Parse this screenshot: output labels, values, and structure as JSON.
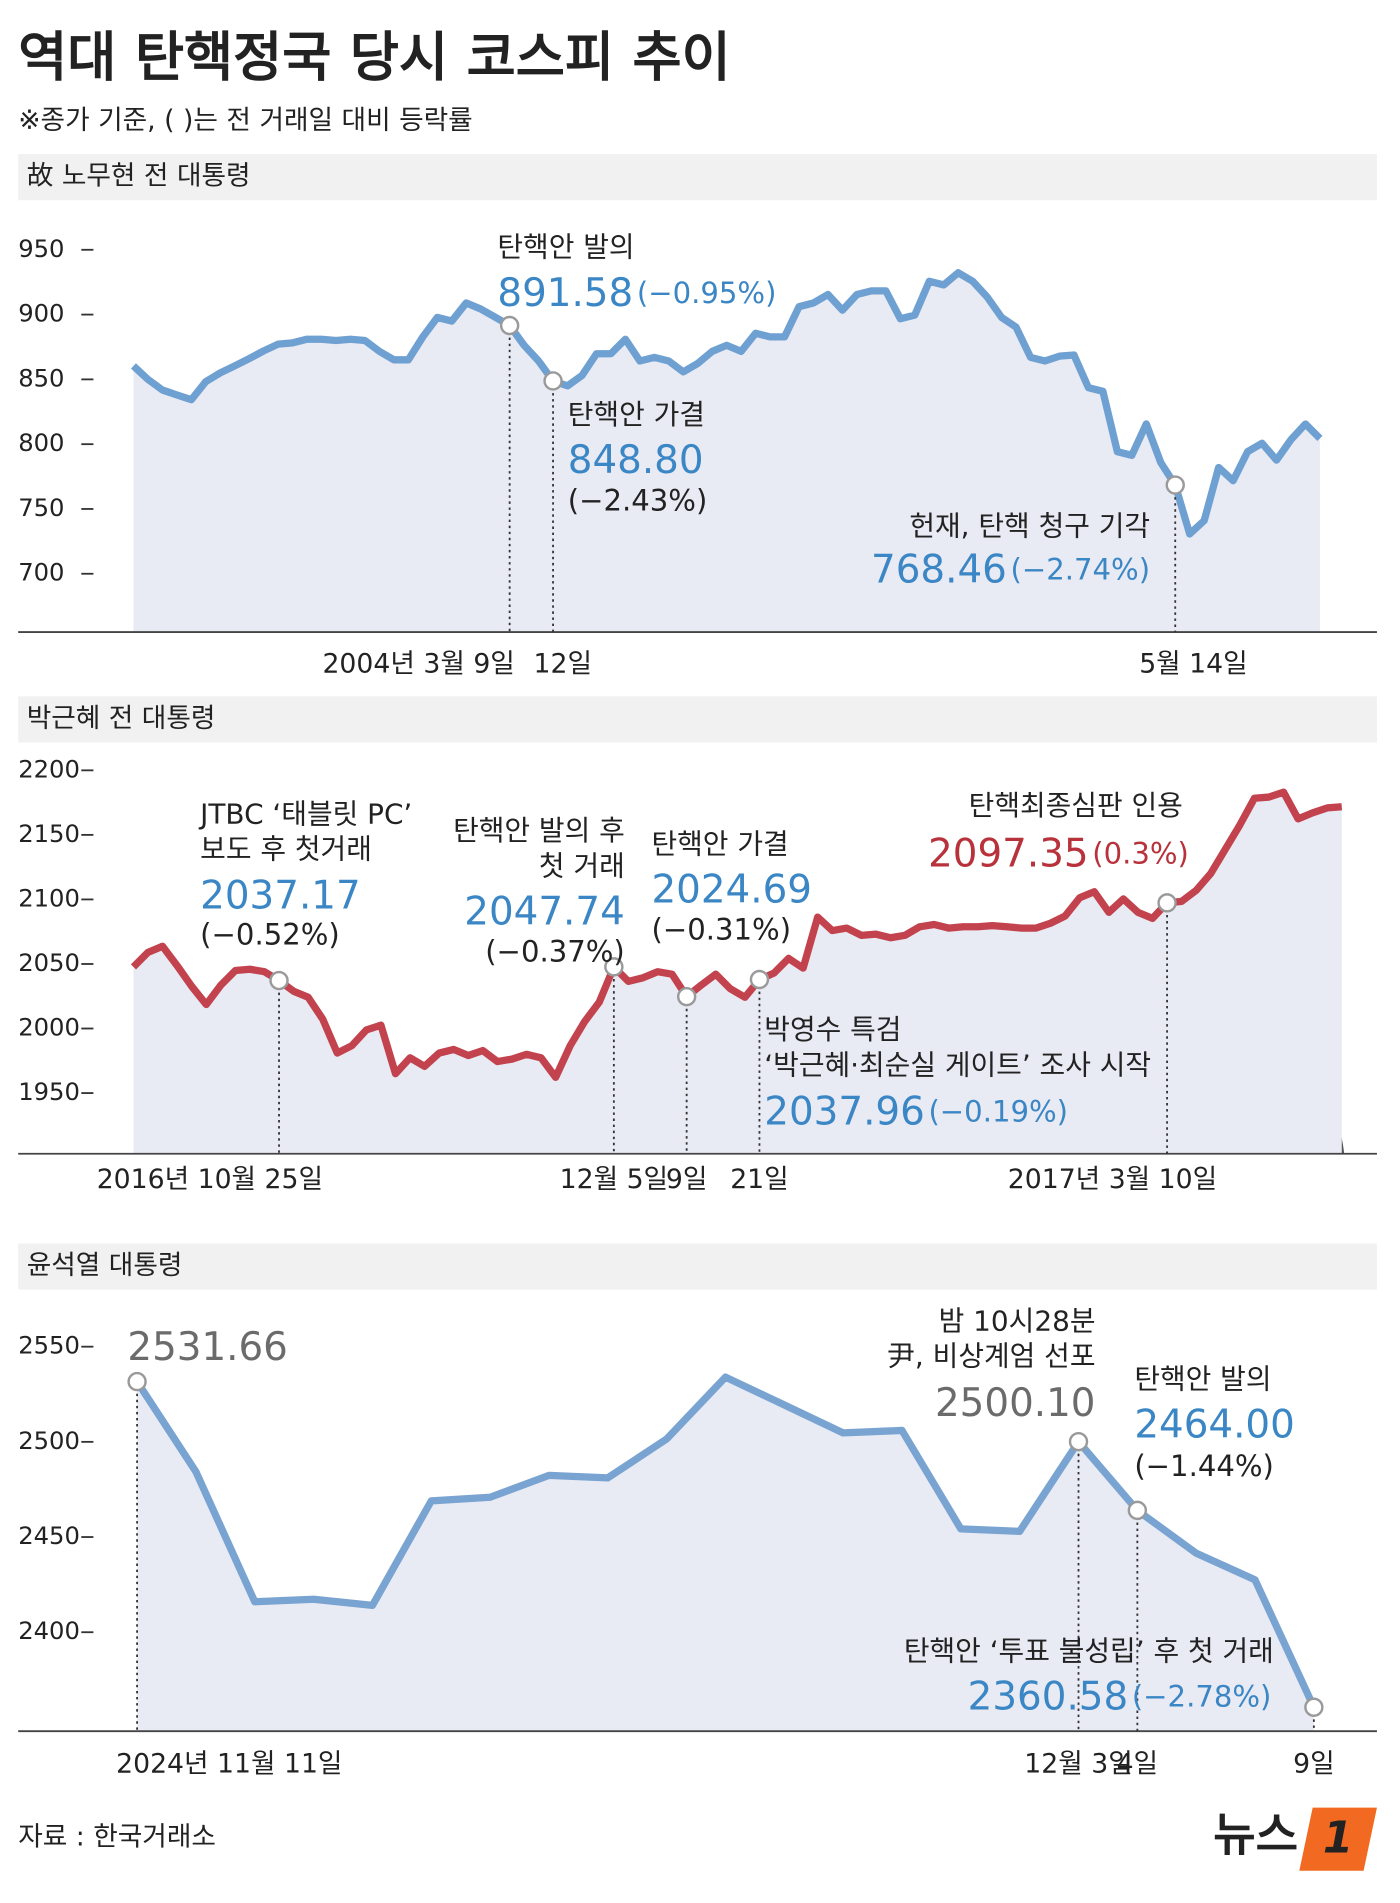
{
  "title": "역대 탄핵정국 당시 코스피 추이",
  "subtitle": "※종가 기준, ( )는 전 거래일 대비 등락률",
  "source": "자료 : 한국거래소",
  "logo": {
    "text": "뉴스",
    "mark": "1"
  },
  "chart_data": [
    {
      "type": "line",
      "title": "故 노무현 전 대통령",
      "categories": [
        null,
        null,
        null,
        null,
        null,
        null,
        null,
        null,
        null,
        null,
        null,
        null,
        null,
        null,
        null,
        null,
        null,
        null,
        null,
        null,
        null,
        null,
        null,
        null,
        null,
        null,
        "2004년 3월 9일",
        null,
        null,
        "12일",
        null,
        null,
        null,
        null,
        null,
        null,
        null,
        null,
        null,
        null,
        null,
        null,
        null,
        null,
        null,
        null,
        null,
        null,
        null,
        null,
        null,
        null,
        null,
        null,
        null,
        null,
        null,
        null,
        null,
        null,
        null,
        null,
        null,
        null,
        null,
        null,
        null,
        null,
        null,
        null,
        null,
        null,
        "5월 14일",
        null,
        null,
        null,
        null,
        null,
        null,
        null,
        null,
        null,
        null
      ],
      "values": [
        860.4,
        850,
        841.8,
        838,
        834.3,
        848.3,
        855,
        860.4,
        866,
        872,
        877.2,
        878.2,
        881,
        881,
        880,
        881,
        880,
        871.6,
        865.1,
        865.1,
        882.8,
        897.8,
        895,
        909,
        904.3,
        898,
        891.58,
        876.3,
        864.2,
        848.8,
        845,
        853,
        869.8,
        869.8,
        881,
        864.2,
        867,
        864.2,
        855.8,
        862.3,
        871.6,
        876.3,
        871.6,
        885.6,
        882.8,
        882.8,
        906.1,
        909,
        915.5,
        903.4,
        915.5,
        918.3,
        918.3,
        896.8,
        899.6,
        925.7,
        922.9,
        932.3,
        925.7,
        913.6,
        897.8,
        890.3,
        867,
        864.2,
        867.9,
        868.8,
        843.6,
        840.8,
        794.2,
        791.4,
        815.6,
        785.8,
        768.46,
        730.7,
        741,
        782,
        771.8,
        794.2,
        800.7,
        787.7,
        803.5,
        815.6,
        804.4
      ],
      "value_labels": [
        null,
        null,
        null,
        null,
        null,
        null,
        null,
        null,
        null,
        null,
        null,
        null,
        null,
        null,
        null,
        null,
        null,
        null,
        null,
        null,
        null,
        null,
        null,
        null,
        null,
        null,
        "891.58",
        null,
        null,
        "848.80",
        null,
        null,
        null,
        null,
        null,
        null,
        null,
        null,
        null,
        null,
        null,
        null,
        null,
        null,
        null,
        null,
        null,
        null,
        null,
        null,
        null,
        null,
        null,
        null,
        null,
        null,
        null,
        null,
        null,
        null,
        null,
        null,
        null,
        null,
        null,
        null,
        null,
        null,
        null,
        null,
        null,
        null,
        "768.46",
        null,
        null,
        null,
        null,
        null,
        null,
        null,
        null,
        null,
        null
      ],
      "events": [
        null,
        null,
        null,
        null,
        null,
        null,
        null,
        null,
        null,
        null,
        null,
        null,
        null,
        null,
        null,
        null,
        null,
        null,
        null,
        null,
        null,
        null,
        null,
        null,
        null,
        null,
        [
          "탄핵안 발의"
        ],
        null,
        null,
        [
          "탄핵안 가결"
        ],
        null,
        null,
        null,
        null,
        null,
        null,
        null,
        null,
        null,
        null,
        null,
        null,
        null,
        null,
        null,
        null,
        null,
        null,
        null,
        null,
        null,
        null,
        null,
        null,
        null,
        null,
        null,
        null,
        null,
        null,
        null,
        null,
        null,
        null,
        null,
        null,
        null,
        null,
        null,
        null,
        null,
        null,
        [
          "헌재, 탄핵 청구 기각"
        ],
        null,
        null,
        null,
        null,
        null,
        null,
        null,
        null,
        null,
        null
      ],
      "changes": [
        null,
        null,
        null,
        null,
        null,
        null,
        null,
        null,
        null,
        null,
        null,
        null,
        null,
        null,
        null,
        null,
        null,
        null,
        null,
        null,
        null,
        null,
        null,
        null,
        null,
        null,
        "(−0.95%)",
        null,
        null,
        "(−2.43%)",
        null,
        null,
        null,
        null,
        null,
        null,
        null,
        null,
        null,
        null,
        null,
        null,
        null,
        null,
        null,
        null,
        null,
        null,
        null,
        null,
        null,
        null,
        null,
        null,
        null,
        null,
        null,
        null,
        null,
        null,
        null,
        null,
        null,
        null,
        null,
        null,
        null,
        null,
        null,
        null,
        null,
        null,
        "(−2.74%)",
        null,
        null,
        null,
        null,
        null,
        null,
        null,
        null,
        null,
        null
      ],
      "label_colors": [
        null,
        null,
        null,
        null,
        null,
        null,
        null,
        null,
        null,
        null,
        null,
        null,
        null,
        null,
        null,
        null,
        null,
        null,
        null,
        null,
        null,
        null,
        null,
        null,
        null,
        null,
        "#3b86c4",
        null,
        null,
        "#3b86c4",
        null,
        null,
        null,
        null,
        null,
        null,
        null,
        null,
        null,
        null,
        null,
        null,
        null,
        null,
        null,
        null,
        null,
        null,
        null,
        null,
        null,
        null,
        null,
        null,
        null,
        null,
        null,
        null,
        null,
        null,
        null,
        null,
        null,
        null,
        null,
        null,
        null,
        null,
        null,
        null,
        null,
        null,
        "#3b86c4",
        null,
        null,
        null,
        null,
        null,
        null,
        null,
        null,
        null,
        null
      ],
      "color": "#6fa0d2",
      "fill": "#e8eaf4",
      "ylim": [
        655,
        988
      ],
      "yticks": [
        950,
        900,
        850,
        800,
        750,
        700
      ]
    },
    {
      "type": "line",
      "title": "박근혜 전 대통령",
      "categories": [
        null,
        null,
        null,
        null,
        null,
        null,
        null,
        null,
        null,
        null,
        "2016년 10월 25일",
        null,
        null,
        null,
        null,
        null,
        null,
        null,
        null,
        null,
        null,
        null,
        null,
        null,
        null,
        null,
        null,
        null,
        null,
        null,
        null,
        null,
        null,
        "12월 5일",
        null,
        null,
        null,
        null,
        "9일",
        null,
        null,
        null,
        null,
        "21일",
        null,
        null,
        null,
        null,
        null,
        null,
        null,
        null,
        null,
        null,
        null,
        null,
        null,
        null,
        null,
        null,
        null,
        null,
        null,
        null,
        null,
        null,
        null,
        null,
        null,
        null,
        null,
        "2017년 3월 10일",
        null,
        null,
        null,
        null,
        null,
        null,
        null,
        null,
        null,
        null,
        null,
        null
      ],
      "values": [
        2047.7,
        2059,
        2063.7,
        2048.7,
        2032.7,
        2018.6,
        2033.6,
        2044.9,
        2045.9,
        2044,
        2037.17,
        2028.9,
        2024.2,
        2007.3,
        1981,
        1986.7,
        1998.9,
        2002.6,
        1965,
        1977.3,
        1970.7,
        1981,
        1983.8,
        1979.1,
        1982.9,
        1974.4,
        1976.3,
        1980,
        1977.3,
        1962.2,
        1986.7,
        2005.5,
        2020.5,
        2047.74,
        2036.5,
        2039.3,
        2044,
        2042.1,
        2024.69,
        2033.6,
        2042.1,
        2030.8,
        2024.2,
        2037.96,
        2043,
        2054.3,
        2046.8,
        2086.3,
        2075.9,
        2077.8,
        2072.2,
        2073.1,
        2070.3,
        2072.2,
        2078.8,
        2080.6,
        2077.8,
        2078.8,
        2078.8,
        2079.7,
        2078.8,
        2077.8,
        2077.8,
        2081.6,
        2087.2,
        2101.3,
        2106,
        2090,
        2100.4,
        2090,
        2085.3,
        2097.35,
        2098.5,
        2107,
        2120.1,
        2138.9,
        2157.7,
        2178.4,
        2179.3,
        2183.1,
        2162.4,
        2167.1,
        2170.9,
        2171.8
      ],
      "value_labels": [
        null,
        null,
        null,
        null,
        null,
        null,
        null,
        null,
        null,
        null,
        "2037.17",
        null,
        null,
        null,
        null,
        null,
        null,
        null,
        null,
        null,
        null,
        null,
        null,
        null,
        null,
        null,
        null,
        null,
        null,
        null,
        null,
        null,
        null,
        "2047.74",
        null,
        null,
        null,
        null,
        "2024.69",
        null,
        null,
        null,
        null,
        "2037.96",
        null,
        null,
        null,
        null,
        null,
        null,
        null,
        null,
        null,
        null,
        null,
        null,
        null,
        null,
        null,
        null,
        null,
        null,
        null,
        null,
        null,
        null,
        null,
        null,
        null,
        null,
        null,
        "2097.35",
        null,
        null,
        null,
        null,
        null,
        null,
        null,
        null,
        null,
        null,
        null,
        null
      ],
      "events": [
        null,
        null,
        null,
        null,
        null,
        null,
        null,
        null,
        null,
        null,
        [
          "JTBC ‘태블릿 PC’",
          "보도 후 첫거래"
        ],
        null,
        null,
        null,
        null,
        null,
        null,
        null,
        null,
        null,
        null,
        null,
        null,
        null,
        null,
        null,
        null,
        null,
        null,
        null,
        null,
        null,
        null,
        [
          "탄핵안 발의 후",
          "첫 거래"
        ],
        null,
        null,
        null,
        null,
        [
          "탄핵안 가결"
        ],
        null,
        null,
        null,
        null,
        [
          "박영수 특검",
          "‘박근혜·최순실 게이트’ 조사 시작"
        ],
        null,
        null,
        null,
        null,
        null,
        null,
        null,
        null,
        null,
        null,
        null,
        null,
        null,
        null,
        null,
        null,
        null,
        null,
        null,
        null,
        null,
        null,
        null,
        null,
        null,
        null,
        null,
        [
          "탄핵최종심판 인용"
        ],
        null,
        null,
        null,
        null,
        null,
        null,
        null,
        null,
        null,
        null,
        null,
        null
      ],
      "changes": [
        null,
        null,
        null,
        null,
        null,
        null,
        null,
        null,
        null,
        null,
        "(−0.52%)",
        null,
        null,
        null,
        null,
        null,
        null,
        null,
        null,
        null,
        null,
        null,
        null,
        null,
        null,
        null,
        null,
        null,
        null,
        null,
        null,
        null,
        null,
        "(−0.37%)",
        null,
        null,
        null,
        null,
        "(−0.31%)",
        null,
        null,
        null,
        null,
        "(−0.19%)",
        null,
        null,
        null,
        null,
        null,
        null,
        null,
        null,
        null,
        null,
        null,
        null,
        null,
        null,
        null,
        null,
        null,
        null,
        null,
        null,
        null,
        null,
        null,
        null,
        null,
        null,
        null,
        "(0.3%)",
        null,
        null,
        null,
        null,
        null,
        null,
        null,
        null,
        null,
        null,
        null,
        null
      ],
      "label_colors": [
        null,
        null,
        null,
        null,
        null,
        null,
        null,
        null,
        null,
        null,
        "#3b86c4",
        null,
        null,
        null,
        null,
        null,
        null,
        null,
        null,
        null,
        null,
        null,
        null,
        null,
        null,
        null,
        null,
        null,
        null,
        null,
        null,
        null,
        null,
        "#3b86c4",
        null,
        null,
        null,
        null,
        "#3b86c4",
        null,
        null,
        null,
        null,
        "#3b86c4",
        null,
        null,
        null,
        null,
        null,
        null,
        null,
        null,
        null,
        null,
        null,
        null,
        null,
        null,
        null,
        null,
        null,
        null,
        null,
        null,
        null,
        null,
        null,
        null,
        null,
        null,
        null,
        "#b8323c",
        null,
        null,
        null,
        null,
        null,
        null,
        null,
        null,
        null,
        null,
        null,
        null
      ],
      "color": "#c2434d",
      "fill": "#e8eaf4",
      "ylim": [
        1903,
        2223
      ],
      "yticks": [
        2200,
        2150,
        2100,
        2050,
        2000,
        1950
      ]
    },
    {
      "type": "line",
      "title": "윤석열 대통령",
      "categories": [
        "2024년 11월 11일",
        null,
        null,
        null,
        null,
        null,
        null,
        null,
        null,
        null,
        null,
        null,
        null,
        null,
        null,
        null,
        "12월 3일",
        "4일",
        null,
        null,
        "9일"
      ],
      "values": [
        2531.66,
        2484.3,
        2416,
        2417.3,
        2414.1,
        2469,
        2470.9,
        2482.4,
        2481.1,
        2501.5,
        2534,
        2519.4,
        2504.7,
        2506,
        2454.3,
        2453,
        2500.1,
        2464,
        2441.5,
        2427.5,
        2360.58
      ],
      "value_labels": [
        "2531.66",
        null,
        null,
        null,
        null,
        null,
        null,
        null,
        null,
        null,
        null,
        null,
        null,
        null,
        null,
        null,
        "2500.10",
        "2464.00",
        null,
        null,
        "2360.58"
      ],
      "events": [
        null,
        null,
        null,
        null,
        null,
        null,
        null,
        null,
        null,
        null,
        null,
        null,
        null,
        null,
        null,
        null,
        [
          "밤 10시28분",
          "尹, 비상계엄 선포"
        ],
        [
          "탄핵안 발의"
        ],
        null,
        null,
        [
          "탄핵안 ‘투표 불성립’ 후 첫 거래"
        ]
      ],
      "changes": [
        null,
        null,
        null,
        null,
        null,
        null,
        null,
        null,
        null,
        null,
        null,
        null,
        null,
        null,
        null,
        null,
        null,
        "(−1.44%)",
        null,
        null,
        "(−2.78%)"
      ],
      "label_colors": [
        "#6b6b6b",
        null,
        null,
        null,
        null,
        null,
        null,
        null,
        null,
        null,
        null,
        null,
        null,
        null,
        null,
        null,
        "#6b6b6b",
        "#3b86c4",
        null,
        null,
        "#3b86c4"
      ],
      "color": "#79a3d1",
      "fill": "#e8eaf4",
      "ylim": [
        2348,
        2578
      ],
      "yticks": [
        2550,
        2500,
        2450,
        2400
      ]
    }
  ]
}
